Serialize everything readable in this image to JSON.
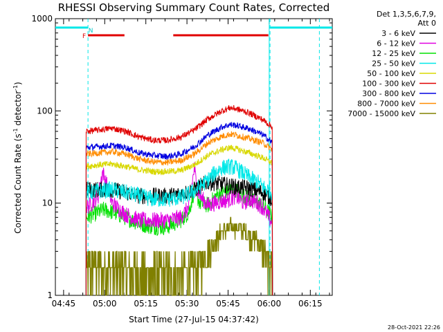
{
  "chart_data": {
    "type": "line",
    "title": "RHESSI Observing Summary Count Rates, Corrected",
    "xlabel": "Start Time (27-Jul-15 04:37:42)",
    "ylabel_main": "Corrected Count Rate (s",
    "ylabel_sup1": "-1",
    "ylabel_mid": " detector",
    "ylabel_sup2": "-1",
    "ylabel_end": ")",
    "yscale": "log",
    "ylim": [
      1,
      1000
    ],
    "xlim_minutes": [
      4.3,
      105.3
    ],
    "x_tick_labels": [
      "04:45",
      "05:00",
      "05:15",
      "05:30",
      "05:45",
      "06:00",
      "06:15"
    ],
    "x_tick_minutes": [
      7.3,
      22.3,
      37.3,
      52.3,
      67.3,
      82.3,
      97.3
    ],
    "y_tick_labels": [
      "1",
      "10",
      "100",
      "1000"
    ],
    "y_tick_values": [
      1,
      10,
      100,
      1000
    ],
    "legend_header": [
      "Det 1,3,5,6,7,9,",
      "Att 0"
    ],
    "series": [
      {
        "name": "3 - 6 keV",
        "color": "#000000",
        "x": [
          15.5,
          20,
          25,
          30,
          35,
          40,
          45,
          50,
          55,
          60,
          65,
          70,
          75,
          80,
          83.5
        ],
        "y": [
          14,
          14,
          14,
          13,
          12,
          12,
          12,
          12.5,
          14,
          17,
          16,
          15,
          14.5,
          13,
          11
        ]
      },
      {
        "name": "6 - 12 keV",
        "color": "#e000e0",
        "x": [
          15.5,
          17,
          20,
          21.5,
          23,
          25,
          30,
          35,
          40,
          45,
          50,
          53,
          55,
          56,
          58,
          60,
          65,
          68,
          70,
          73,
          75,
          78,
          80,
          83.5
        ],
        "y": [
          9,
          9.5,
          12,
          22,
          16,
          10,
          7.5,
          6.5,
          6.5,
          6.5,
          7,
          9,
          24,
          14,
          11,
          9.5,
          10.5,
          11,
          12,
          10,
          11,
          10,
          9,
          6
        ]
      },
      {
        "name": "12 - 25 keV",
        "color": "#00e000",
        "x": [
          15.5,
          18,
          20,
          22,
          25,
          30,
          35,
          40,
          45,
          50,
          53,
          55,
          57,
          60,
          63,
          65,
          68,
          70,
          73,
          75,
          78,
          80,
          83.5
        ],
        "y": [
          7,
          7.5,
          8,
          8.5,
          8,
          7,
          6,
          5.5,
          5.5,
          6.5,
          8,
          14,
          10,
          9.5,
          12,
          13,
          14,
          14,
          12,
          11,
          10,
          9.5,
          7
        ]
      },
      {
        "name": "25 - 50 keV",
        "color": "#00e8e8",
        "x": [
          15.5,
          20,
          25,
          30,
          35,
          40,
          45,
          50,
          53,
          55,
          57,
          60,
          63,
          65,
          68,
          70,
          73,
          75,
          78,
          80,
          83.5
        ],
        "y": [
          13,
          13.5,
          14,
          13,
          12,
          11,
          11,
          11.5,
          12.5,
          13.5,
          15,
          18,
          22,
          24,
          25,
          24,
          21,
          19,
          17,
          15,
          13
        ]
      },
      {
        "name": "50 - 100 keV",
        "color": "#d8d800",
        "x": [
          15.5,
          20,
          25,
          30,
          35,
          40,
          45,
          50,
          55,
          60,
          65,
          68,
          70,
          75,
          80,
          83.5
        ],
        "y": [
          25,
          26,
          26.5,
          25,
          23,
          22,
          22,
          22.5,
          26,
          33,
          38,
          40,
          39,
          35,
          31,
          27
        ]
      },
      {
        "name": "100 - 300 keV",
        "color": "#e00000",
        "x": [
          15.5,
          20,
          25,
          30,
          35,
          40,
          45,
          50,
          55,
          60,
          65,
          68,
          70,
          75,
          80,
          83.5
        ],
        "y": [
          60,
          62,
          65,
          60,
          52,
          48,
          48,
          52,
          62,
          82,
          100,
          108,
          106,
          95,
          80,
          67
        ]
      },
      {
        "name": "300 - 800 keV",
        "color": "#0000e0",
        "x": [
          15.5,
          20,
          25,
          30,
          35,
          40,
          45,
          50,
          55,
          60,
          65,
          68,
          70,
          75,
          80,
          83.5
        ],
        "y": [
          40,
          41,
          42,
          40,
          35,
          33,
          32,
          34,
          41,
          55,
          67,
          71,
          70,
          64,
          55,
          45
        ]
      },
      {
        "name": "800 - 7000 keV",
        "color": "#ff8c00",
        "x": [
          15.5,
          20,
          25,
          30,
          35,
          40,
          45,
          50,
          55,
          60,
          65,
          68,
          70,
          75,
          80,
          83.5
        ],
        "y": [
          34,
          35,
          36,
          34,
          30,
          28,
          27.5,
          29,
          34,
          45,
          53,
          56,
          55,
          50,
          45,
          38
        ]
      },
      {
        "name": "7000 - 15000 keV",
        "color": "#808000",
        "x": [
          15.5,
          20,
          25,
          30,
          35,
          40,
          45,
          50,
          55,
          58,
          60,
          63,
          65,
          68,
          70,
          73,
          75,
          78,
          80,
          83.5
        ],
        "y": [
          2,
          2,
          2,
          1.9,
          1.8,
          1.7,
          1.7,
          1.8,
          2,
          2.5,
          3,
          4,
          5,
          5.5,
          5.5,
          5,
          4.5,
          4,
          3,
          2
        ]
      }
    ],
    "attenuator_lines": [
      {
        "x0": 4.3,
        "x1": 16.2,
        "y": 800,
        "color": "#00e8e8"
      },
      {
        "x0": 82.3,
        "x1": 105.3,
        "y": 800,
        "color": "#00e8e8"
      }
    ],
    "red_bars": [
      {
        "x0": 16.2,
        "x1": 29.5,
        "y": 660
      },
      {
        "x0": 47.3,
        "x1": 82.0,
        "y": 660
      }
    ],
    "dashed_lines": [
      {
        "x": 16.2,
        "color": "#00e8e8"
      },
      {
        "x": 82.6,
        "color": "#00e8e8"
      },
      {
        "x": 100.6,
        "color": "#00e8e8"
      }
    ],
    "solid_lines": [
      {
        "x": 82.3,
        "color": "#00e8e8"
      }
    ],
    "flag_labels": [
      {
        "text": "F",
        "x": 14.8,
        "y": 660,
        "color": "#e00000"
      },
      {
        "text": "N",
        "x": 17.2,
        "y": 760,
        "color": "#00c8c8"
      }
    ],
    "timestamp": "28-Oct-2021 22:26"
  }
}
